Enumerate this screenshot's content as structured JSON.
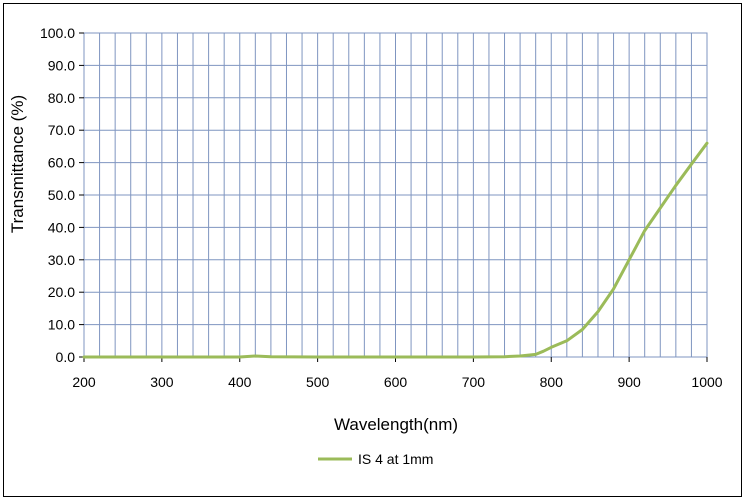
{
  "chart_data": {
    "type": "line",
    "title": "",
    "xlabel": "Wavelength(nm)",
    "ylabel": "Transmittance (%)",
    "xlim": [
      200,
      1000
    ],
    "ylim": [
      0,
      100
    ],
    "x_ticks": [
      "200",
      "300",
      "400",
      "500",
      "600",
      "700",
      "800",
      "900",
      "1000"
    ],
    "y_ticks": [
      "0.0",
      "10.0",
      "20.0",
      "30.0",
      "40.0",
      "50.0",
      "60.0",
      "70.0",
      "80.0",
      "90.0",
      "100.0"
    ],
    "grid": true,
    "legend_position": "bottom",
    "series": [
      {
        "name": "IS 4 at 1mm",
        "color": "#9bbb59",
        "x": [
          200,
          300,
          400,
          420,
          440,
          500,
          600,
          700,
          740,
          760,
          780,
          790,
          800,
          820,
          840,
          860,
          880,
          900,
          920,
          940,
          960,
          980,
          1000
        ],
        "y": [
          0,
          0,
          0,
          0.3,
          0.1,
          0,
          0,
          0,
          0.1,
          0.3,
          0.8,
          1.8,
          3.0,
          5.0,
          8.5,
          14.0,
          21.0,
          30.0,
          39.0,
          46.0,
          53.0,
          59.5,
          66.0
        ]
      }
    ]
  }
}
